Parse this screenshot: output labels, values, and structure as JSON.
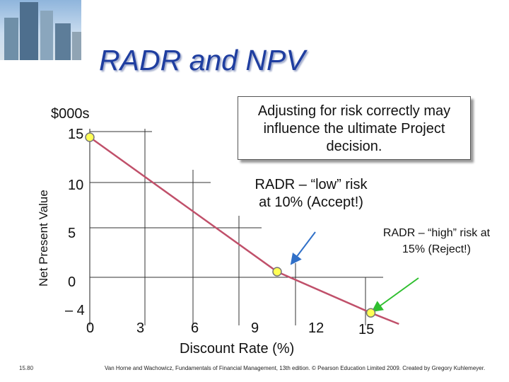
{
  "slide": {
    "title": "RADR and NPV",
    "slide_number": "15.80",
    "citation": "Van Horne and Wachowicz, Fundamentals of Financial Management, 13th edition. © Pearson Education Limited 2009. Created by Gregory Kuhlemeyer.",
    "photo": "city-skyscrapers-photo"
  },
  "callouts": {
    "note": "Adjusting for risk correctly may influence the ultimate Project decision.",
    "low": "RADR – “low” risk at 10% (Accept!)",
    "high": "RADR – “high” risk at 15% (Reject!)"
  },
  "chart_data": {
    "type": "line",
    "ylabel": "Net Present Value",
    "y_units": "$000s",
    "xlabel": "Discount Rate (%)",
    "x_ticks": [
      "0",
      "3",
      "6",
      "9",
      "12",
      "15"
    ],
    "y_ticks": [
      "15",
      "10",
      "5",
      "0",
      "– 4"
    ],
    "xlim": [
      0,
      16.5
    ],
    "ylim": [
      -4,
      15
    ],
    "series": [
      {
        "x": [
          0,
          10,
          15,
          16.5
        ],
        "y": [
          15,
          0.6,
          -3.8,
          -5
        ]
      }
    ],
    "markers": [
      {
        "x": 0,
        "y": 15
      },
      {
        "x": 10,
        "y": 0.6
      },
      {
        "x": 15,
        "y": -3.8
      }
    ],
    "colors": {
      "line": "#c0506a",
      "marker_fill": "#ffff55",
      "marker_stroke": "#777777",
      "arrow_low": "#3070c8",
      "arrow_high": "#2fbf2f",
      "title": "#1f3ea0"
    }
  }
}
